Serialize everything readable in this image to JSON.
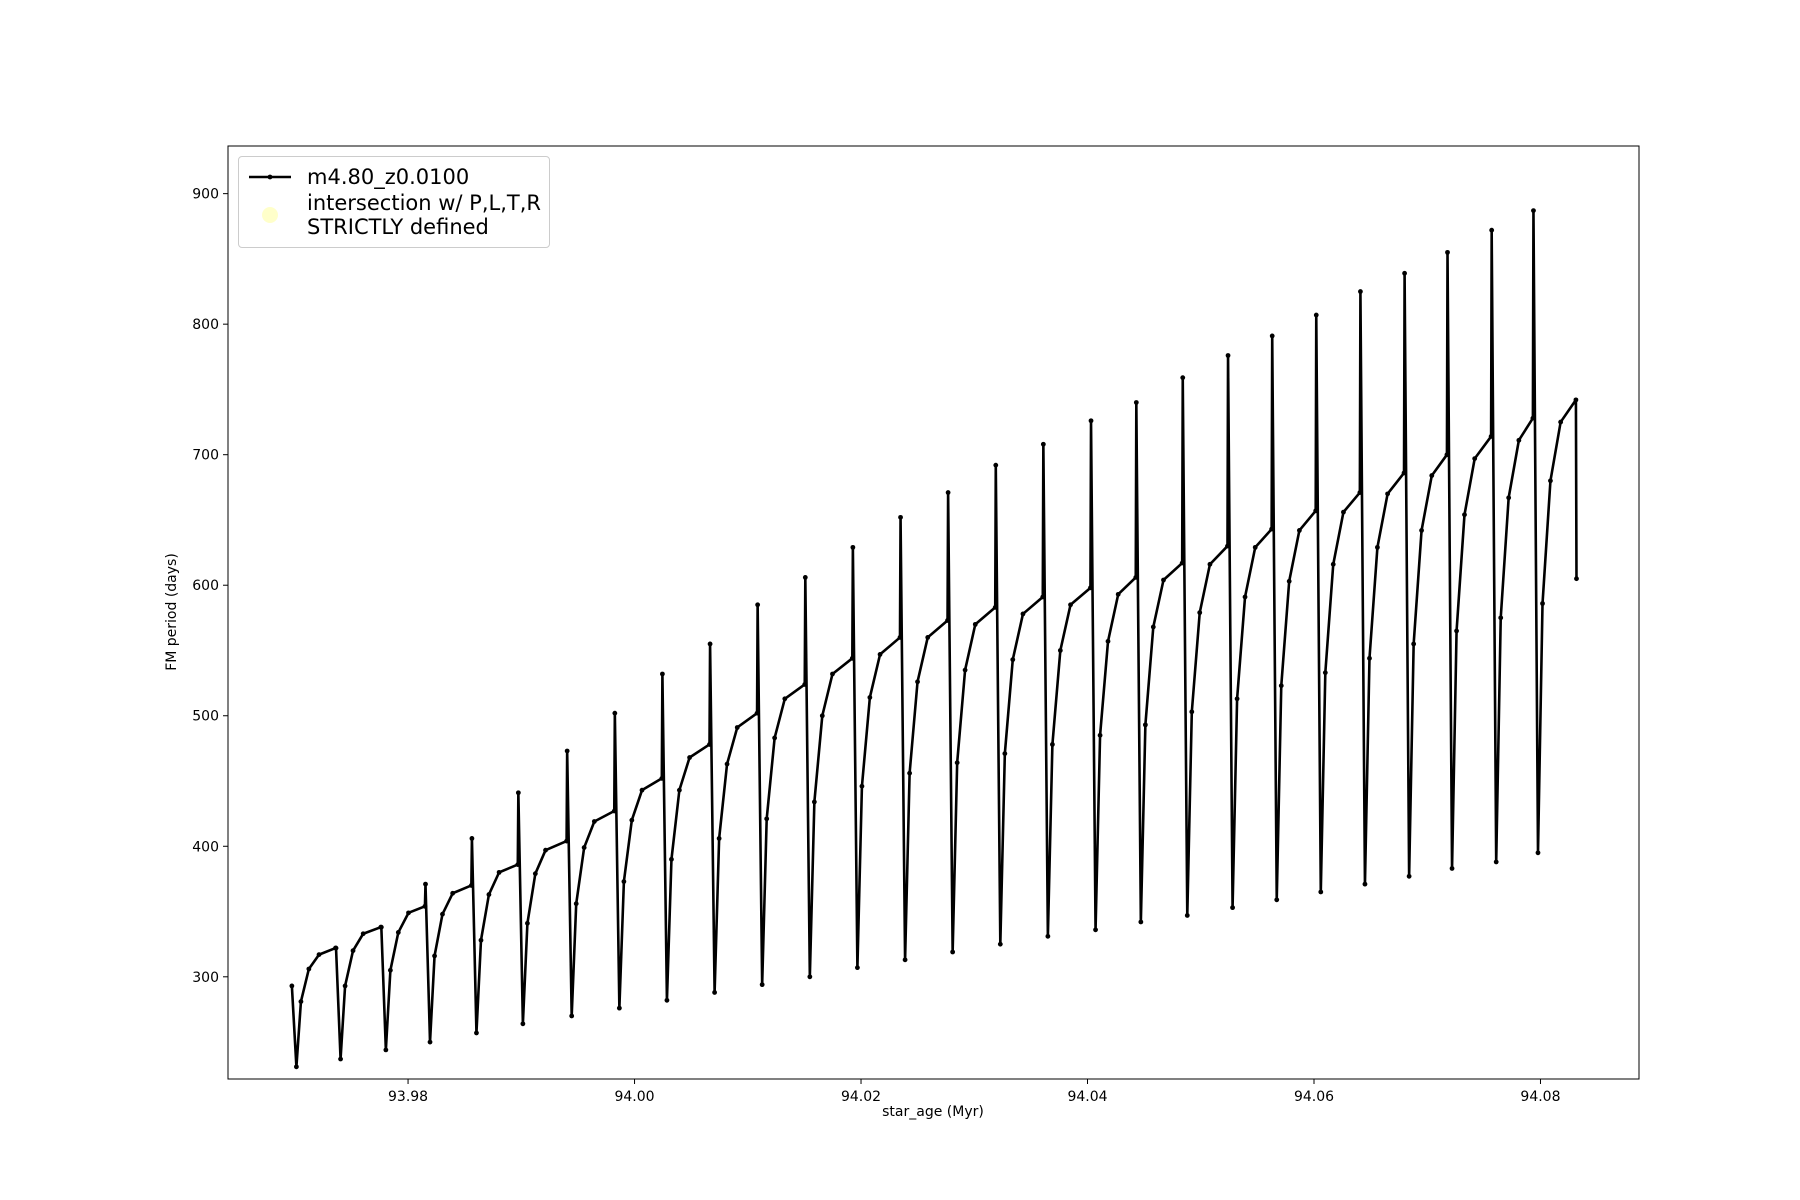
{
  "chart_data": {
    "type": "line",
    "xlabel": "star_age (Myr)",
    "ylabel": "FM period (days)",
    "xlim": [
      93.9641,
      94.0887
    ],
    "ylim": [
      221.7,
      936.5
    ],
    "xticks": [
      93.98,
      {
        "value": 94,
        "label": "94.00"
      },
      94.02,
      94.04,
      94.06,
      94.08
    ],
    "yticks": [
      300,
      400,
      500,
      600,
      700,
      800,
      900
    ],
    "legend": "upper left",
    "series": [
      {
        "name": "m4.80_z0.0100",
        "color": "#000000",
        "marker": true,
        "x": [
          93.96974,
          93.97014,
          93.97054,
          93.97124,
          93.97214,
          93.97359,
          93.97364,
          93.97404,
          93.97444,
          93.97514,
          93.97604,
          93.97759,
          93.97764,
          93.97804,
          93.97844,
          93.97914,
          93.98004,
          93.98149,
          93.98154,
          93.98194,
          93.98234,
          93.98304,
          93.98394,
          93.98559,
          93.98564,
          93.98604,
          93.98644,
          93.98714,
          93.98804,
          93.98969,
          93.98974,
          93.99014,
          93.99054,
          93.99124,
          93.99214,
          93.994,
          93.99405,
          93.99445,
          93.99485,
          93.99555,
          93.99645,
          93.99821,
          93.99826,
          93.99866,
          93.99906,
          93.99976,
          94.00066,
          94.00241,
          94.00246,
          94.00286,
          94.00326,
          94.00396,
          94.00486,
          94.00662,
          94.00667,
          94.00707,
          94.00747,
          94.00817,
          94.00907,
          94.01082,
          94.01087,
          94.01127,
          94.01167,
          94.01237,
          94.01327,
          94.01503,
          94.01508,
          94.01548,
          94.01588,
          94.01658,
          94.01748,
          94.01923,
          94.01928,
          94.01968,
          94.02008,
          94.02078,
          94.02168,
          94.02344,
          94.02349,
          94.02389,
          94.02429,
          94.02499,
          94.02589,
          94.02764,
          94.02769,
          94.02809,
          94.02849,
          94.02919,
          94.03009,
          94.03185,
          94.0319,
          94.0323,
          94.0327,
          94.0334,
          94.0343,
          94.03605,
          94.0361,
          94.0365,
          94.0369,
          94.0376,
          94.0385,
          94.04026,
          94.04031,
          94.04071,
          94.04111,
          94.04181,
          94.04271,
          94.04426,
          94.04431,
          94.04471,
          94.04511,
          94.04581,
          94.04671,
          94.04836,
          94.04841,
          94.04881,
          94.04921,
          94.04991,
          94.05081,
          94.05236,
          94.05241,
          94.05281,
          94.05321,
          94.05391,
          94.05481,
          94.05626,
          94.05631,
          94.05671,
          94.05711,
          94.05781,
          94.05871,
          94.06015,
          94.0602,
          94.0606,
          94.061,
          94.0617,
          94.0626,
          94.06405,
          94.0641,
          94.0645,
          94.0649,
          94.0656,
          94.0665,
          94.06795,
          94.068,
          94.0684,
          94.0688,
          94.0695,
          94.0704,
          94.07174,
          94.07179,
          94.07219,
          94.07259,
          94.07329,
          94.07419,
          94.07564,
          94.07569,
          94.07609,
          94.07649,
          94.07719,
          94.07809,
          94.07933,
          94.07938,
          94.07978,
          94.08018,
          94.08088,
          94.08178,
          94.08313,
          94.08318
        ],
        "values": [
          293,
          231,
          281,
          306,
          317,
          322,
          322,
          237,
          293,
          320,
          333,
          338,
          338,
          244,
          305,
          334,
          349,
          354,
          371,
          250,
          316,
          348,
          364,
          370,
          406,
          257,
          328,
          363,
          380,
          386,
          441,
          264,
          341,
          379,
          397,
          404,
          473,
          270,
          356,
          399,
          419,
          427,
          502,
          276,
          373,
          420,
          443,
          452,
          532,
          282,
          390,
          443,
          468,
          478,
          555,
          288,
          406,
          463,
          491,
          502,
          585,
          294,
          421,
          483,
          513,
          524,
          606,
          300,
          434,
          500,
          532,
          544,
          629,
          307,
          446,
          514,
          547,
          560,
          652,
          313,
          456,
          526,
          560,
          573,
          671,
          319,
          464,
          535,
          570,
          583,
          692,
          325,
          471,
          543,
          578,
          591,
          708,
          331,
          478,
          550,
          585,
          598,
          726,
          336,
          485,
          557,
          593,
          606,
          740,
          342,
          493,
          568,
          604,
          617,
          759,
          347,
          503,
          579,
          616,
          630,
          776,
          353,
          513,
          591,
          629,
          643,
          791,
          359,
          523,
          603,
          642,
          657,
          807,
          365,
          533,
          616,
          656,
          671,
          825,
          371,
          544,
          629,
          670,
          686,
          839,
          377,
          555,
          642,
          684,
          700,
          855,
          383,
          565,
          654,
          697,
          714,
          872,
          388,
          575,
          667,
          711,
          728,
          887,
          395,
          586,
          680,
          725,
          742,
          605
        ]
      },
      {
        "name": "intersection w/ P,L,T,R\nSTRICTLY defined",
        "color": "#ffffb3",
        "type": "scatter",
        "x": [],
        "values": []
      }
    ]
  }
}
